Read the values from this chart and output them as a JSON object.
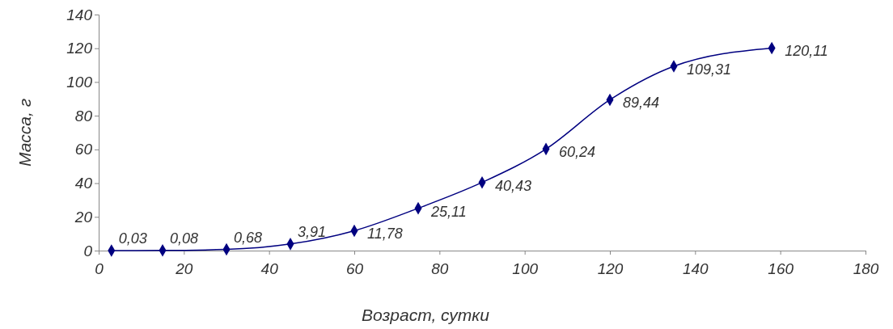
{
  "chart_data": {
    "type": "line",
    "xlabel": "Возраст, сутки",
    "ylabel": "Масса, г",
    "x": [
      3,
      15,
      30,
      45,
      60,
      75,
      90,
      105,
      120,
      135,
      158
    ],
    "series": [
      {
        "color": "#000080",
        "values": [
          0.03,
          0.08,
          0.68,
          3.91,
          11.78,
          25.11,
          40.43,
          60.24,
          89.44,
          109.31,
          120.11
        ],
        "value_labels": [
          "0,03",
          "0,08",
          "0,68",
          "3,91",
          "11,78",
          "25,11",
          "40,43",
          "60,24",
          "89,44",
          "109,31",
          "120,11"
        ]
      }
    ],
    "xlim": [
      0,
      180
    ],
    "xticks": [
      0,
      20,
      40,
      60,
      80,
      100,
      120,
      140,
      160,
      180
    ],
    "ylim": [
      0,
      140
    ],
    "yticks": [
      0,
      20,
      40,
      60,
      80,
      100,
      120,
      140
    ],
    "marker": "diamond",
    "line_style": "solid",
    "grid": false
  }
}
